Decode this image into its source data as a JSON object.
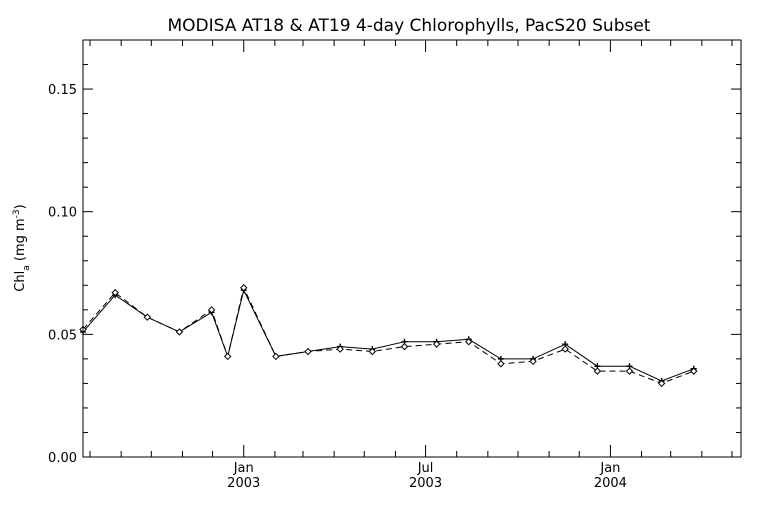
{
  "chart_data": {
    "type": "line",
    "title": "MODISA AT18 & AT19 4-day Chlorophylls, PacS20 Subset",
    "ylabel": {
      "base": "Chl",
      "sub": "a",
      "units_open": " (mg m",
      "units_sup": "-3",
      "units_close": ")"
    },
    "xlim": [
      "2002-07-25",
      "2004-05-10"
    ],
    "ylim": [
      0.0,
      0.17
    ],
    "y_ticks": [
      {
        "value": 0.0,
        "label": "0.00"
      },
      {
        "value": 0.05,
        "label": "0.05"
      },
      {
        "value": 0.1,
        "label": "0.10"
      },
      {
        "value": 0.15,
        "label": "0.15"
      }
    ],
    "x_major_ticks": [
      {
        "date": "2003-01-01",
        "label_top": "Jan",
        "label_bottom": "2003"
      },
      {
        "date": "2003-07-01",
        "label_top": "Jul",
        "label_bottom": "2003"
      },
      {
        "date": "2004-01-01",
        "label_top": "Jan",
        "label_bottom": "2004"
      }
    ],
    "x_minor_ticks": [
      "2002-08-01",
      "2002-09-01",
      "2002-10-01",
      "2002-11-01",
      "2002-12-01",
      "2003-02-01",
      "2003-03-01",
      "2003-04-01",
      "2003-05-01",
      "2003-06-01",
      "2003-08-01",
      "2003-09-01",
      "2003-10-01",
      "2003-11-01",
      "2003-12-01",
      "2004-02-01",
      "2004-03-01",
      "2004-04-01",
      "2004-05-01"
    ],
    "grid": false,
    "series": [
      {
        "style": "solid",
        "marker": "plus",
        "points": [
          {
            "x": "2002-07-25",
            "y": 0.051
          },
          {
            "x": "2002-08-26",
            "y": 0.066
          },
          {
            "x": "2002-09-27",
            "y": 0.057
          },
          {
            "x": "2002-10-29",
            "y": 0.051
          },
          {
            "x": "2002-11-30",
            "y": 0.059
          },
          {
            "x": "2002-12-16",
            "y": 0.041
          },
          {
            "x": "2003-01-01",
            "y": 0.068
          },
          {
            "x": "2003-02-02",
            "y": 0.041
          },
          {
            "x": "2003-03-06",
            "y": 0.043
          },
          {
            "x": "2003-04-07",
            "y": 0.045
          },
          {
            "x": "2003-05-09",
            "y": 0.044
          },
          {
            "x": "2003-06-10",
            "y": 0.047
          },
          {
            "x": "2003-07-12",
            "y": 0.047
          },
          {
            "x": "2003-08-13",
            "y": 0.048
          },
          {
            "x": "2003-09-14",
            "y": 0.04
          },
          {
            "x": "2003-10-16",
            "y": 0.04
          },
          {
            "x": "2003-11-17",
            "y": 0.046
          },
          {
            "x": "2003-12-19",
            "y": 0.037
          },
          {
            "x": "2004-01-20",
            "y": 0.037
          },
          {
            "x": "2004-02-21",
            "y": 0.031
          },
          {
            "x": "2004-03-24",
            "y": 0.036
          }
        ]
      },
      {
        "style": "dashed",
        "marker": "diamond",
        "points": [
          {
            "x": "2002-07-25",
            "y": 0.052
          },
          {
            "x": "2002-08-26",
            "y": 0.067
          },
          {
            "x": "2002-09-27",
            "y": 0.057
          },
          {
            "x": "2002-10-29",
            "y": 0.051
          },
          {
            "x": "2002-11-30",
            "y": 0.06
          },
          {
            "x": "2002-12-16",
            "y": 0.041
          },
          {
            "x": "2003-01-01",
            "y": 0.069
          },
          {
            "x": "2003-02-02",
            "y": 0.041
          },
          {
            "x": "2003-03-06",
            "y": 0.043
          },
          {
            "x": "2003-04-07",
            "y": 0.044
          },
          {
            "x": "2003-05-09",
            "y": 0.043
          },
          {
            "x": "2003-06-10",
            "y": 0.045
          },
          {
            "x": "2003-07-12",
            "y": 0.046
          },
          {
            "x": "2003-08-13",
            "y": 0.047
          },
          {
            "x": "2003-09-14",
            "y": 0.038
          },
          {
            "x": "2003-10-16",
            "y": 0.039
          },
          {
            "x": "2003-11-17",
            "y": 0.044
          },
          {
            "x": "2003-12-19",
            "y": 0.035
          },
          {
            "x": "2004-01-20",
            "y": 0.035
          },
          {
            "x": "2004-02-21",
            "y": 0.03
          },
          {
            "x": "2004-03-24",
            "y": 0.035
          }
        ]
      }
    ]
  }
}
